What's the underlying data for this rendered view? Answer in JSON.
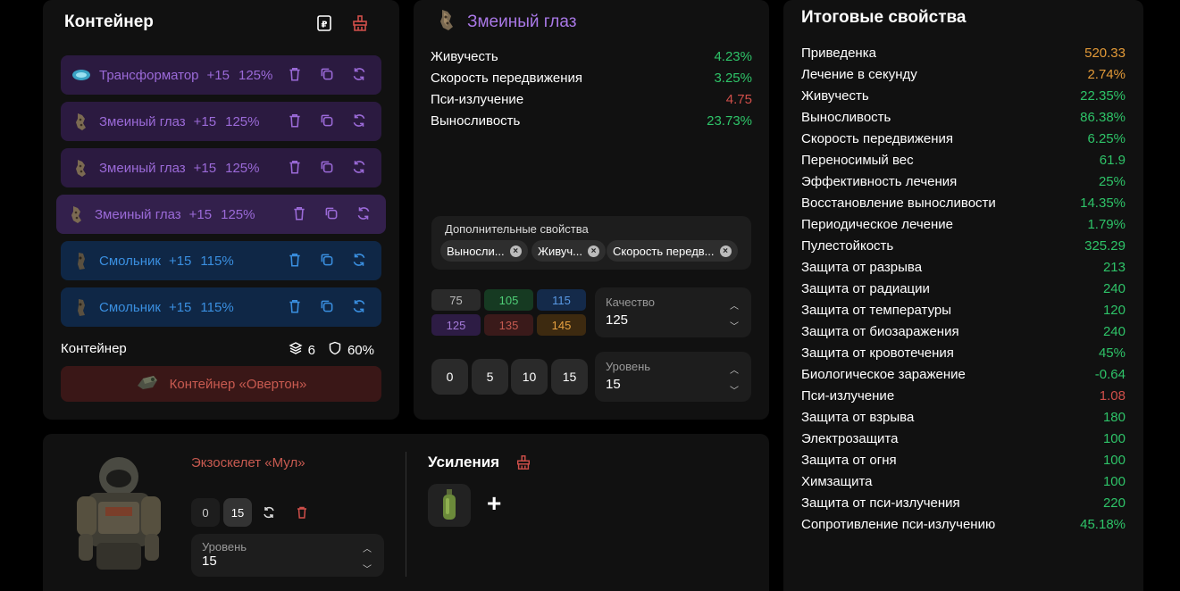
{
  "container": {
    "title": "Контейнер",
    "artifacts": [
      {
        "name": "Трансформатор",
        "level": "+15",
        "quality": "125%",
        "color": "purple"
      },
      {
        "name": "Змеиный глаз",
        "level": "+15",
        "quality": "125%",
        "color": "purple"
      },
      {
        "name": "Змеиный глаз",
        "level": "+15",
        "quality": "125%",
        "color": "purple"
      },
      {
        "name": "Змеиный глаз",
        "level": "+15",
        "quality": "125%",
        "color": "purple"
      },
      {
        "name": "Смольник",
        "level": "+15",
        "quality": "115%",
        "color": "blue"
      },
      {
        "name": "Смольник",
        "level": "+15",
        "quality": "115%",
        "color": "blue"
      }
    ],
    "footer_label": "Контейнер",
    "slots": "6",
    "protection": "60%",
    "container_button": "Контейнер «Овертон»"
  },
  "artifact": {
    "title": "Змеиный глаз",
    "stats": [
      {
        "name": "Живучесть",
        "value": "4.23%",
        "color": "green"
      },
      {
        "name": "Скорость передвижения",
        "value": "3.25%",
        "color": "green"
      },
      {
        "name": "Пси-излучение",
        "value": "4.75",
        "color": "red"
      },
      {
        "name": "Выносливость",
        "value": "23.73%",
        "color": "green"
      }
    ],
    "extra_title": "Дополнительные свойства",
    "extra_chips": [
      "Выносли...",
      "Живуч...",
      "Скорость передв..."
    ],
    "quality_options": [
      {
        "label": "75",
        "bg": "#2a2a2a",
        "fg": "#bbbbbb"
      },
      {
        "label": "105",
        "bg": "#163a22",
        "fg": "#4fcf77"
      },
      {
        "label": "115",
        "bg": "#142a4a",
        "fg": "#5a9ae6"
      },
      {
        "label": "125",
        "bg": "#2d1c44",
        "fg": "#a47ad8"
      },
      {
        "label": "135",
        "bg": "#3a1a1a",
        "fg": "#c45a50"
      },
      {
        "label": "145",
        "bg": "#3d2a10",
        "fg": "#e6a040"
      }
    ],
    "quality_label": "Качество",
    "quality_value": "125",
    "level_buttons": [
      "0",
      "5",
      "10",
      "15"
    ],
    "level_label": "Уровень",
    "level_value": "15"
  },
  "totals": {
    "title": "Итоговые свойства",
    "rows": [
      {
        "name": "Приведенка",
        "value": "520.33",
        "color": "orange"
      },
      {
        "name": "Лечение в секунду",
        "value": "2.74%",
        "color": "orange"
      },
      {
        "name": "Живучесть",
        "value": "22.35%",
        "color": "green"
      },
      {
        "name": "Выносливость",
        "value": "86.38%",
        "color": "green"
      },
      {
        "name": "Скорость передвижения",
        "value": "6.25%",
        "color": "green"
      },
      {
        "name": "Переносимый вес",
        "value": "61.9",
        "color": "green"
      },
      {
        "name": "Эффективность лечения",
        "value": "25%",
        "color": "green"
      },
      {
        "name": "Восстановление выносливости",
        "value": "14.35%",
        "color": "green"
      },
      {
        "name": "Периодическое лечение",
        "value": "1.79%",
        "color": "green"
      },
      {
        "name": "Пулестойкость",
        "value": "325.29",
        "color": "green"
      },
      {
        "name": "Защита от разрыва",
        "value": "213",
        "color": "green"
      },
      {
        "name": "Защита от радиации",
        "value": "240",
        "color": "green"
      },
      {
        "name": "Защита от температуры",
        "value": "120",
        "color": "green"
      },
      {
        "name": "Защита от биозаражения",
        "value": "240",
        "color": "green"
      },
      {
        "name": "Защита от кровотечения",
        "value": "45%",
        "color": "green"
      },
      {
        "name": "Биологическое заражение",
        "value": "-0.64",
        "color": "green"
      },
      {
        "name": "Пси-излучение",
        "value": "1.08",
        "color": "red"
      },
      {
        "name": "Защита от взрыва",
        "value": "180",
        "color": "green"
      },
      {
        "name": "Электрозащита",
        "value": "100",
        "color": "green"
      },
      {
        "name": "Защита от огня",
        "value": "100",
        "color": "green"
      },
      {
        "name": "Химзащита",
        "value": "100",
        "color": "green"
      },
      {
        "name": "Защита от пси-излучения",
        "value": "220",
        "color": "green"
      },
      {
        "name": "Сопротивление пси-излучению",
        "value": "45.18%",
        "color": "green"
      }
    ]
  },
  "armor": {
    "name": "Экзоскелет «Мул»",
    "level_buttons": [
      "0",
      "15"
    ],
    "level_label": "Уровень",
    "level_value": "15",
    "boosts_title": "Усиления",
    "add_symbol": "+"
  },
  "colors": {
    "green": "#2ec368",
    "orange": "#e39a38",
    "red": "#d04f4a",
    "purple": "#9b6ad8",
    "blue": "#3a8fe0"
  }
}
